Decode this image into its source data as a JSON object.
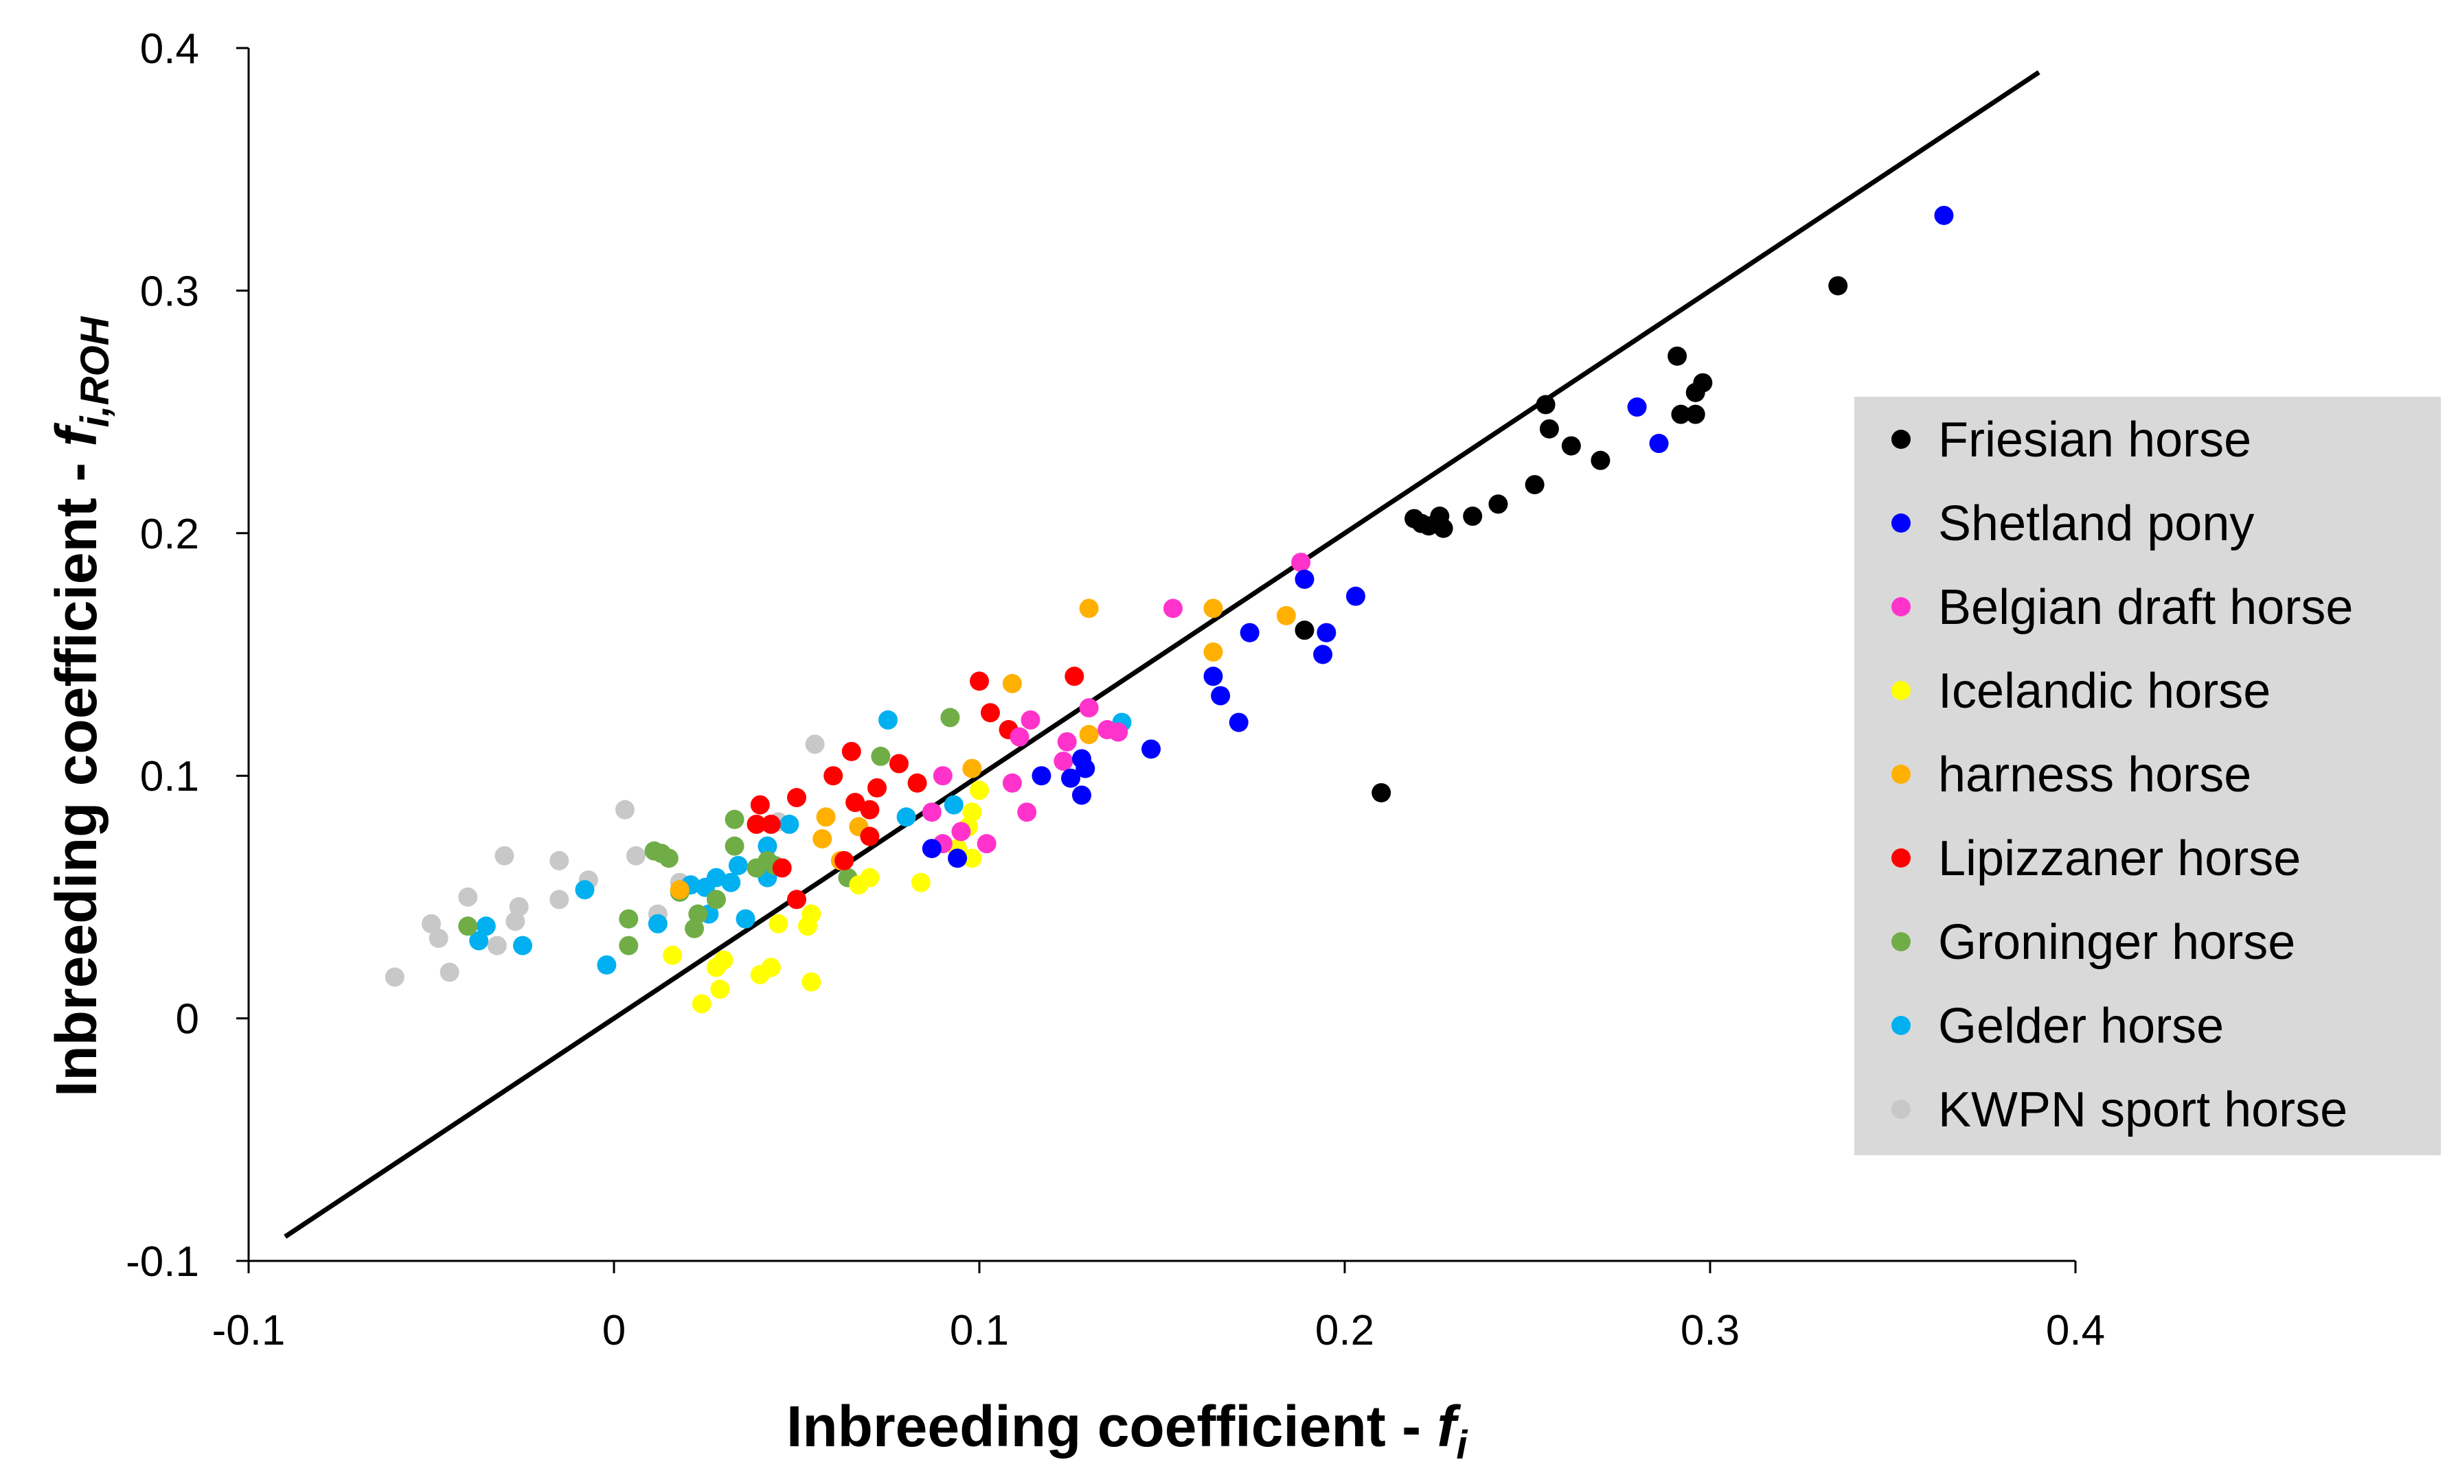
{
  "chart_data": {
    "type": "scatter",
    "title": "",
    "xlabel": "Inbreeding coefficient - ",
    "xlabel_sym": "f",
    "xlabel_sub": "i",
    "ylabel": "Inbreeding coefficient - ",
    "ylabel_sym": "f",
    "ylabel_sub": "i,ROH",
    "xlim": [
      -0.1,
      0.4
    ],
    "ylim": [
      -0.1,
      0.4
    ],
    "xticks": [
      -0.1,
      0,
      0.1,
      0.2,
      0.3,
      0.4
    ],
    "yticks": [
      -0.1,
      0,
      0.1,
      0.2,
      0.3,
      0.4
    ],
    "xtick_labels": [
      "-0.1",
      "0",
      "0.1",
      "0.2",
      "0.3",
      "0.4"
    ],
    "ytick_labels": [
      "-0.1",
      "0",
      "0.1",
      "0.2",
      "0.3",
      "0.4"
    ],
    "grid": false,
    "legend_position": "right",
    "reference_line": {
      "x": [
        -0.09,
        0.39
      ],
      "y": [
        -0.09,
        0.39
      ],
      "color": "#000000"
    },
    "series": [
      {
        "name": "Friesian horse",
        "color": "#000000",
        "points": [
          [
            0.335,
            0.302
          ],
          [
            0.291,
            0.273
          ],
          [
            0.298,
            0.262
          ],
          [
            0.296,
            0.258
          ],
          [
            0.255,
            0.253
          ],
          [
            0.292,
            0.249
          ],
          [
            0.296,
            0.249
          ],
          [
            0.256,
            0.243
          ],
          [
            0.262,
            0.236
          ],
          [
            0.27,
            0.23
          ],
          [
            0.252,
            0.22
          ],
          [
            0.242,
            0.212
          ],
          [
            0.235,
            0.207
          ],
          [
            0.226,
            0.207
          ],
          [
            0.219,
            0.206
          ],
          [
            0.221,
            0.204
          ],
          [
            0.223,
            0.203
          ],
          [
            0.227,
            0.202
          ],
          [
            0.189,
            0.16
          ],
          [
            0.21,
            0.093
          ]
        ]
      },
      {
        "name": "Shetland pony",
        "color": "#0000FF",
        "points": [
          [
            0.364,
            0.331
          ],
          [
            0.28,
            0.252
          ],
          [
            0.286,
            0.237
          ],
          [
            0.189,
            0.181
          ],
          [
            0.203,
            0.174
          ],
          [
            0.174,
            0.159
          ],
          [
            0.195,
            0.159
          ],
          [
            0.194,
            0.15
          ],
          [
            0.164,
            0.141
          ],
          [
            0.166,
            0.133
          ],
          [
            0.171,
            0.122
          ],
          [
            0.147,
            0.111
          ],
          [
            0.128,
            0.107
          ],
          [
            0.129,
            0.103
          ],
          [
            0.117,
            0.1
          ],
          [
            0.125,
            0.099
          ],
          [
            0.128,
            0.092
          ],
          [
            0.087,
            0.07
          ],
          [
            0.094,
            0.066
          ]
        ]
      },
      {
        "name": "Belgian draft horse",
        "color": "#FF33CC",
        "points": [
          [
            0.188,
            0.188
          ],
          [
            0.153,
            0.169
          ],
          [
            0.13,
            0.128
          ],
          [
            0.114,
            0.123
          ],
          [
            0.135,
            0.119
          ],
          [
            0.138,
            0.118
          ],
          [
            0.111,
            0.116
          ],
          [
            0.124,
            0.114
          ],
          [
            0.123,
            0.106
          ],
          [
            0.09,
            0.1
          ],
          [
            0.109,
            0.097
          ],
          [
            0.087,
            0.085
          ],
          [
            0.113,
            0.085
          ],
          [
            0.095,
            0.077
          ],
          [
            0.102,
            0.072
          ],
          [
            0.09,
            0.072
          ]
        ]
      },
      {
        "name": "Icelandic horse",
        "color": "#FFFF00",
        "points": [
          [
            0.1,
            0.094
          ],
          [
            0.098,
            0.085
          ],
          [
            0.097,
            0.079
          ],
          [
            0.094,
            0.07
          ],
          [
            0.098,
            0.066
          ],
          [
            0.07,
            0.058
          ],
          [
            0.084,
            0.056
          ],
          [
            0.067,
            0.055
          ],
          [
            0.054,
            0.043
          ],
          [
            0.053,
            0.038
          ],
          [
            0.045,
            0.039
          ],
          [
            0.016,
            0.026
          ],
          [
            0.03,
            0.024
          ],
          [
            0.028,
            0.021
          ],
          [
            0.043,
            0.021
          ],
          [
            0.04,
            0.018
          ],
          [
            0.054,
            0.015
          ],
          [
            0.029,
            0.012
          ],
          [
            0.024,
            0.006
          ]
        ]
      },
      {
        "name": "harness horse",
        "color": "#FFB000",
        "points": [
          [
            0.13,
            0.169
          ],
          [
            0.164,
            0.169
          ],
          [
            0.184,
            0.166
          ],
          [
            0.164,
            0.151
          ],
          [
            0.109,
            0.138
          ],
          [
            0.13,
            0.117
          ],
          [
            0.098,
            0.103
          ],
          [
            0.058,
            0.083
          ],
          [
            0.067,
            0.079
          ],
          [
            0.057,
            0.074
          ],
          [
            0.062,
            0.065
          ],
          [
            0.018,
            0.053
          ]
        ]
      },
      {
        "name": "Lipizzaner horse",
        "color": "#FF0000",
        "points": [
          [
            0.126,
            0.141
          ],
          [
            0.1,
            0.139
          ],
          [
            0.103,
            0.126
          ],
          [
            0.108,
            0.119
          ],
          [
            0.065,
            0.11
          ],
          [
            0.078,
            0.105
          ],
          [
            0.06,
            0.1
          ],
          [
            0.083,
            0.097
          ],
          [
            0.072,
            0.095
          ],
          [
            0.04,
            0.088
          ],
          [
            0.066,
            0.089
          ],
          [
            0.05,
            0.091
          ],
          [
            0.07,
            0.086
          ],
          [
            0.039,
            0.08
          ],
          [
            0.043,
            0.08
          ],
          [
            0.07,
            0.075
          ],
          [
            0.063,
            0.065
          ],
          [
            0.046,
            0.062
          ],
          [
            0.05,
            0.049
          ]
        ]
      },
      {
        "name": "Groninger horse",
        "color": "#70AD47",
        "points": [
          [
            0.092,
            0.124
          ],
          [
            0.073,
            0.108
          ],
          [
            0.033,
            0.082
          ],
          [
            0.011,
            0.069
          ],
          [
            0.013,
            0.068
          ],
          [
            0.015,
            0.066
          ],
          [
            0.033,
            0.071
          ],
          [
            0.042,
            0.065
          ],
          [
            0.039,
            0.062
          ],
          [
            0.044,
            0.063
          ],
          [
            0.064,
            0.058
          ],
          [
            0.018,
            0.052
          ],
          [
            0.028,
            0.049
          ],
          [
            0.023,
            0.043
          ],
          [
            0.004,
            0.041
          ],
          [
            0.022,
            0.037
          ],
          [
            0.004,
            0.03
          ],
          [
            -0.04,
            0.038
          ]
        ]
      },
      {
        "name": "Gelder horse",
        "color": "#00B0F0",
        "points": [
          [
            0.075,
            0.123
          ],
          [
            0.139,
            0.122
          ],
          [
            0.093,
            0.088
          ],
          [
            0.08,
            0.083
          ],
          [
            0.048,
            0.08
          ],
          [
            0.042,
            0.071
          ],
          [
            0.034,
            0.063
          ],
          [
            0.042,
            0.058
          ],
          [
            0.028,
            0.058
          ],
          [
            0.021,
            0.055
          ],
          [
            0.025,
            0.054
          ],
          [
            -0.008,
            0.053
          ],
          [
            0.032,
            0.056
          ],
          [
            0.026,
            0.043
          ],
          [
            0.036,
            0.041
          ],
          [
            0.012,
            0.039
          ],
          [
            -0.035,
            0.038
          ],
          [
            -0.037,
            0.032
          ],
          [
            -0.025,
            0.03
          ],
          [
            -0.002,
            0.022
          ]
        ]
      },
      {
        "name": "KWPN sport horse",
        "color": "#C8C8C8",
        "points": [
          [
            0.055,
            0.113
          ],
          [
            0.003,
            0.086
          ],
          [
            0.045,
            0.081
          ],
          [
            -0.03,
            0.067
          ],
          [
            0.006,
            0.067
          ],
          [
            -0.015,
            0.065
          ],
          [
            -0.007,
            0.057
          ],
          [
            0.018,
            0.056
          ],
          [
            -0.04,
            0.05
          ],
          [
            -0.015,
            0.049
          ],
          [
            -0.026,
            0.046
          ],
          [
            0.012,
            0.043
          ],
          [
            -0.05,
            0.039
          ],
          [
            -0.027,
            0.04
          ],
          [
            -0.048,
            0.033
          ],
          [
            -0.032,
            0.03
          ],
          [
            -0.045,
            0.019
          ],
          [
            -0.06,
            0.017
          ]
        ]
      }
    ]
  }
}
